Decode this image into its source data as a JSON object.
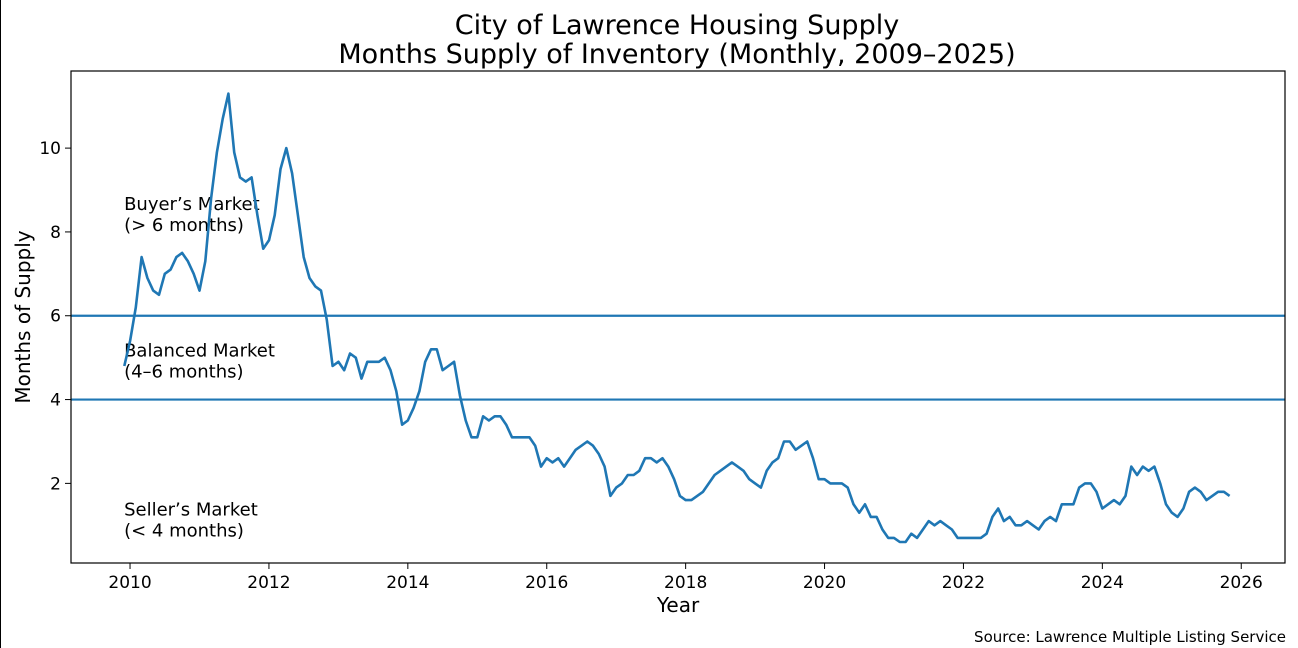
{
  "chart_data": {
    "type": "line",
    "title": "City of Lawrence Housing Supply",
    "subtitle": "Months Supply of Inventory (Monthly, 2009–2025)",
    "xlabel": "Year",
    "ylabel": "Months of Supply",
    "xlim": [
      2009.15,
      2026.63
    ],
    "ylim": [
      0.1,
      11.84
    ],
    "xticks": [
      2010,
      2012,
      2014,
      2016,
      2018,
      2020,
      2022,
      2024,
      2026
    ],
    "yticks": [
      2,
      4,
      6,
      8,
      10
    ],
    "grid": false,
    "series": [
      {
        "name": "Months Supply",
        "color": "#1f77b4",
        "start_year_decimal": 2009.917,
        "step_years": 0.08333,
        "values": [
          4.8,
          5.4,
          6.2,
          7.4,
          6.9,
          6.6,
          6.5,
          7.0,
          7.1,
          7.4,
          7.5,
          7.3,
          7.0,
          6.6,
          7.3,
          8.8,
          9.9,
          10.7,
          11.3,
          9.9,
          9.3,
          9.2,
          9.3,
          8.4,
          7.6,
          7.8,
          8.4,
          9.5,
          10.0,
          9.4,
          8.4,
          7.4,
          6.9,
          6.7,
          6.6,
          5.9,
          4.8,
          4.9,
          4.7,
          5.1,
          5.0,
          4.5,
          4.9,
          4.9,
          4.9,
          5.0,
          4.7,
          4.2,
          3.4,
          3.5,
          3.8,
          4.2,
          4.9,
          5.2,
          5.2,
          4.7,
          4.8,
          4.9,
          4.1,
          3.5,
          3.1,
          3.1,
          3.6,
          3.5,
          3.6,
          3.6,
          3.4,
          3.1,
          3.1,
          3.1,
          3.1,
          2.9,
          2.4,
          2.6,
          2.5,
          2.6,
          2.4,
          2.6,
          2.8,
          2.9,
          3.0,
          2.9,
          2.7,
          2.4,
          1.7,
          1.9,
          2.0,
          2.2,
          2.2,
          2.3,
          2.6,
          2.6,
          2.5,
          2.6,
          2.4,
          2.1,
          1.7,
          1.6,
          1.6,
          1.7,
          1.8,
          2.0,
          2.2,
          2.3,
          2.4,
          2.5,
          2.4,
          2.3,
          2.1,
          2.0,
          1.9,
          2.3,
          2.5,
          2.6,
          3.0,
          3.0,
          2.8,
          2.9,
          3.0,
          2.6,
          2.1,
          2.1,
          2.0,
          2.0,
          2.0,
          1.9,
          1.5,
          1.3,
          1.5,
          1.2,
          1.2,
          0.9,
          0.7,
          0.7,
          0.6,
          0.6,
          0.8,
          0.7,
          0.9,
          1.1,
          1.0,
          1.1,
          1.0,
          0.9,
          0.7,
          0.7,
          0.7,
          0.7,
          0.7,
          0.8,
          1.2,
          1.4,
          1.1,
          1.2,
          1.0,
          1.0,
          1.1,
          1.0,
          0.9,
          1.1,
          1.2,
          1.1,
          1.5,
          1.5,
          1.5,
          1.9,
          2.0,
          2.0,
          1.8,
          1.4,
          1.5,
          1.6,
          1.5,
          1.7,
          2.4,
          2.2,
          2.4,
          2.3,
          2.4,
          2.0,
          1.5,
          1.3,
          1.2,
          1.4,
          1.8,
          1.9,
          1.8,
          1.6,
          1.7,
          1.8,
          1.8,
          1.7
        ]
      }
    ],
    "reference_lines": [
      {
        "y": 6,
        "color": "#1f77b4"
      },
      {
        "y": 4,
        "color": "#1f77b4"
      }
    ],
    "annotations": [
      {
        "line1": "Buyer’s Market",
        "line2": "(> 6 months)",
        "x": 2009.9,
        "y": 8.6
      },
      {
        "line1": "Balanced Market",
        "line2": "(4–6 months)",
        "x": 2009.9,
        "y": 5.1
      },
      {
        "line1": "Seller’s Market",
        "line2": "(< 4 months)",
        "x": 2009.9,
        "y": 1.3
      }
    ]
  },
  "source": "Source: Lawrence Multiple Listing Service"
}
